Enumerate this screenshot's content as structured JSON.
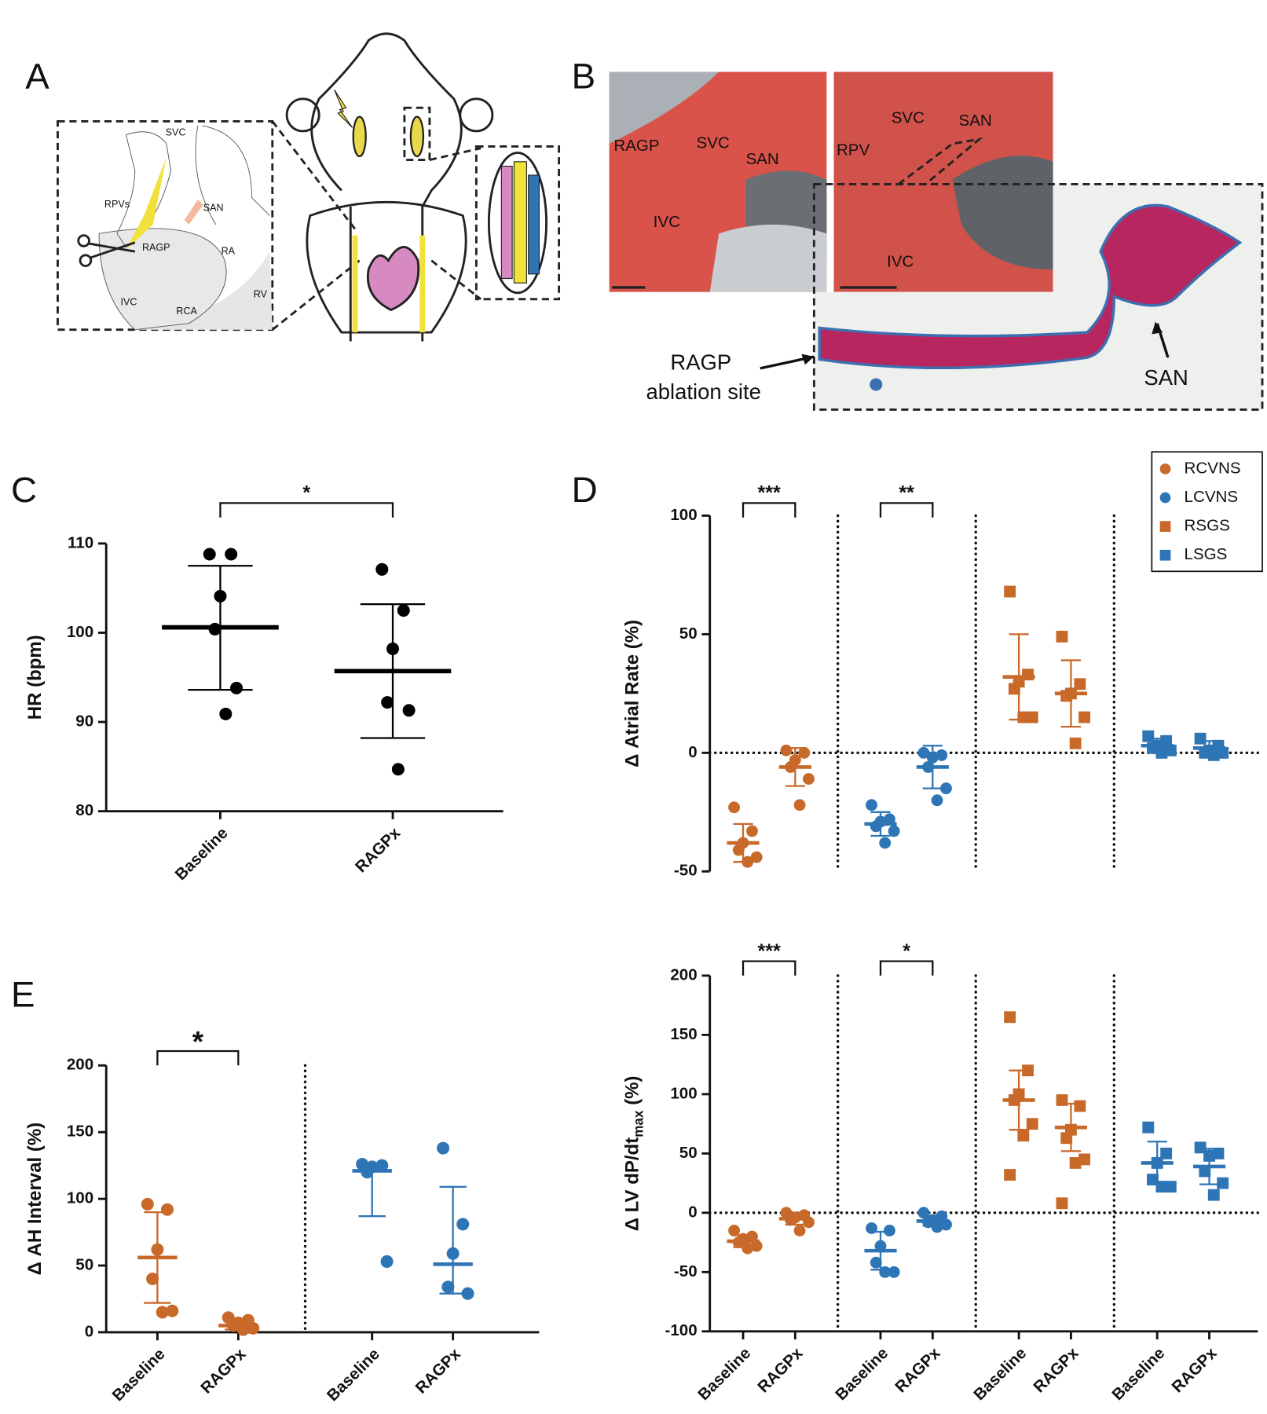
{
  "panel_labels": [
    "A",
    "B",
    "C",
    "D",
    "E"
  ],
  "panel_a": {
    "labels": [
      "SVC",
      "RPVs",
      "SAN",
      "RAGP",
      "RA",
      "IVC",
      "RCA",
      "RV"
    ]
  },
  "panel_b": {
    "photo_labels": [
      "RAGP",
      "SVC",
      "SAN",
      "IVC",
      "RPV",
      "SVC",
      "SAN",
      "IVC"
    ],
    "ablation_label": [
      "RAGP",
      "ablation site"
    ],
    "san_label": "SAN"
  },
  "chart_data": [
    {
      "type": "dotplot",
      "ylabel": "HR  (bpm)",
      "ylim": [
        80,
        110
      ],
      "yticks": [
        80,
        90,
        100,
        110
      ],
      "categories": [
        "Baseline",
        "RAGPx"
      ],
      "significance": [
        "*"
      ],
      "series": [
        {
          "color": "#000000",
          "marker": "circle",
          "values": [
            [
              108.8,
              108.8,
              104.1,
              100.4,
              93.8,
              90.9
            ],
            [
              107.1,
              102.5,
              98.2,
              92.2,
              91.3,
              84.7
            ]
          ],
          "center": [
            100.6,
            95.7
          ],
          "bar_low": [
            93.6,
            88.2
          ],
          "bar_high": [
            107.5,
            103.2
          ]
        }
      ]
    },
    {
      "type": "dotplot",
      "ylabel": "Δ Atrial Rate (%)",
      "ylim": [
        -50,
        100
      ],
      "yticks": [
        -50,
        0,
        50,
        100
      ],
      "zero_line": true,
      "legend": "top-right",
      "significance": [
        "***",
        "**"
      ],
      "series": [
        {
          "name": "RCVNS",
          "color": "#c8692a",
          "marker": "circle",
          "values": [
            [
              -23,
              -33,
              -38,
              -41,
              -44,
              -46
            ],
            [
              1,
              0,
              -3,
              -6,
              -11,
              -22
            ]
          ],
          "center": [
            -38,
            -6
          ],
          "bar_low": [
            -46,
            -14
          ],
          "bar_high": [
            -30,
            2
          ]
        },
        {
          "name": "LCVNS",
          "color": "#2e75b6",
          "marker": "circle",
          "values": [
            [
              -22,
              -28,
              -29,
              -31,
              -33,
              -38
            ],
            [
              0,
              -1,
              -2,
              -6,
              -15,
              -20
            ]
          ],
          "center": [
            -30,
            -6
          ],
          "bar_low": [
            -35,
            -15
          ],
          "bar_high": [
            -25,
            3
          ]
        },
        {
          "name": "RSGS",
          "color": "#c8692a",
          "marker": "square",
          "values": [
            [
              68,
              33,
              30,
              27,
              15,
              15
            ],
            [
              49,
              29,
              25,
              24,
              15,
              4
            ]
          ],
          "center": [
            32,
            25
          ],
          "bar_low": [
            14,
            11
          ],
          "bar_high": [
            50,
            39
          ]
        },
        {
          "name": "LSGS",
          "color": "#2e75b6",
          "marker": "square",
          "values": [
            [
              7,
              5,
              3,
              2,
              1,
              0
            ],
            [
              6,
              3,
              1,
              0,
              0,
              -1
            ]
          ],
          "center": [
            3,
            2
          ],
          "bar_low": [
            0,
            -1
          ],
          "bar_high": [
            6,
            5
          ]
        }
      ]
    },
    {
      "type": "dotplot",
      "ylabel": "Δ LV dP/dt",
      "ylabel_subscript": "max",
      "ylabel_suffix": " (%)",
      "ylim": [
        -100,
        200
      ],
      "yticks": [
        -100,
        -50,
        0,
        50,
        100,
        150,
        200
      ],
      "zero_line": true,
      "categories": [
        "Baseline",
        "RAGPx",
        "Baseline",
        "RAGPx",
        "Baseline",
        "RAGPx",
        "Baseline",
        "RAGPx"
      ],
      "significance": [
        "***",
        "*"
      ],
      "series": [
        {
          "color": "#c8692a",
          "marker": "circle",
          "values": [
            [
              -15,
              -20,
              -22,
              -25,
              -28,
              -30
            ],
            [
              0,
              -2,
              -4,
              -6,
              -8,
              -15
            ]
          ],
          "center": [
            -24,
            -5
          ],
          "bar_low": [
            -29,
            -10
          ],
          "bar_high": [
            -19,
            0
          ]
        },
        {
          "color": "#2e75b6",
          "marker": "circle",
          "values": [
            [
              -13,
              -15,
              -28,
              -42,
              -50,
              -50
            ],
            [
              0,
              -3,
              -6,
              -8,
              -10,
              -12
            ]
          ],
          "center": [
            -32,
            -7
          ],
          "bar_low": [
            -48,
            -11
          ],
          "bar_high": [
            -16,
            -3
          ]
        },
        {
          "color": "#c8692a",
          "marker": "square",
          "values": [
            [
              165,
              120,
              100,
              95,
              75,
              65,
              32
            ],
            [
              95,
              90,
              70,
              63,
              45,
              42,
              8
            ]
          ],
          "center": [
            95,
            72
          ],
          "bar_low": [
            70,
            52
          ],
          "bar_high": [
            120,
            92
          ]
        },
        {
          "color": "#2e75b6",
          "marker": "square",
          "values": [
            [
              72,
              50,
              42,
              28,
              22,
              22
            ],
            [
              55,
              50,
              48,
              35,
              25,
              15
            ]
          ],
          "center": [
            42,
            39
          ],
          "bar_low": [
            24,
            24
          ],
          "bar_high": [
            60,
            54
          ]
        }
      ]
    },
    {
      "type": "dotplot",
      "ylabel": "Δ AH Interval (%)",
      "ylim": [
        0,
        200
      ],
      "yticks": [
        0,
        50,
        100,
        150,
        200
      ],
      "categories": [
        "Baseline",
        "RAGPx",
        "Baseline",
        "RAGPx"
      ],
      "significance": [
        "*"
      ],
      "series": [
        {
          "color": "#c8692a",
          "marker": "circle",
          "values": [
            [
              96,
              92,
              62,
              40,
              16,
              15
            ],
            [
              11,
              9,
              7,
              5,
              3,
              2
            ]
          ],
          "center": [
            56,
            5
          ],
          "bar_low": [
            22,
            2
          ],
          "bar_high": [
            90,
            10
          ]
        },
        {
          "color": "#2e75b6",
          "marker": "circle",
          "values": [
            [
              126,
              125,
              124,
              120,
              53
            ],
            [
              138,
              81,
              59,
              34,
              29
            ]
          ],
          "center": [
            121,
            51
          ],
          "bar_low": [
            87,
            29
          ],
          "bar_high": [
            126,
            109
          ]
        }
      ]
    }
  ]
}
